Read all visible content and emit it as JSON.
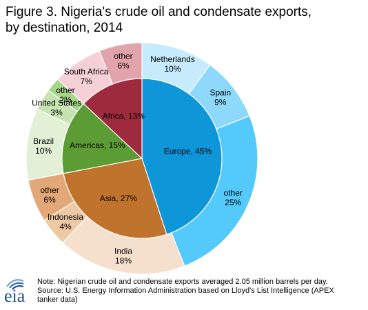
{
  "header": {
    "title_line1": "Figure 3. Nigeria's crude oil and condensate exports,",
    "title_line2": "by destination, 2014"
  },
  "footer": {
    "note": "Note: Nigerian crude oil and condensate exports averaged 2.05 million barrels per day.",
    "source_line1": "Source: U.S. Energy Information Administration based on Lloyd's List Intelligence (APEX",
    "source_line2": "tanker data)"
  },
  "logo": {
    "text": "eia"
  },
  "chart_data": {
    "type": "pie",
    "title": "Figure 3. Nigeria's crude oil and condensate exports, by destination, 2014",
    "inner": [
      {
        "label": "Europe, 45%",
        "value": 45,
        "color": "#0e96d8"
      },
      {
        "label": "Asia, 27%",
        "value": 27,
        "color": "#c0732c"
      },
      {
        "label": "Americas, 15%",
        "value": 15,
        "color": "#5c9c34"
      },
      {
        "label": "Africa, 13%",
        "value": 13,
        "color": "#9e2a3e"
      }
    ],
    "outer": [
      {
        "label": [
          "Netherlands",
          "10%"
        ],
        "value": 10,
        "color": "#c5ebfc"
      },
      {
        "label": [
          "Spain",
          "9%"
        ],
        "value": 9,
        "color": "#8ed9fb"
      },
      {
        "label": [
          "other",
          "25%"
        ],
        "value": 25,
        "color": "#54c9fb"
      },
      {
        "label": [
          "India",
          "18%"
        ],
        "value": 18,
        "color": "#f4e0cc"
      },
      {
        "label": [
          "Indonesia",
          "4%"
        ],
        "value": 4,
        "color": "#edc9a4"
      },
      {
        "label": [
          "other",
          "6%"
        ],
        "value": 6,
        "color": "#e3a878"
      },
      {
        "label": [
          "Brazil",
          "10%"
        ],
        "value": 10,
        "color": "#e2f1d6"
      },
      {
        "label": [
          "United States",
          "3%"
        ],
        "value": 3,
        "color": "#c7e3b2"
      },
      {
        "label": [
          "other",
          "2%"
        ],
        "value": 2,
        "color": "#a5d58b"
      },
      {
        "label": [
          "South Africa",
          "7%"
        ],
        "value": 7,
        "color": "#f5d0d6"
      },
      {
        "label": [
          "other",
          "6%"
        ],
        "value": 6,
        "color": "#e1a3ac"
      }
    ]
  }
}
